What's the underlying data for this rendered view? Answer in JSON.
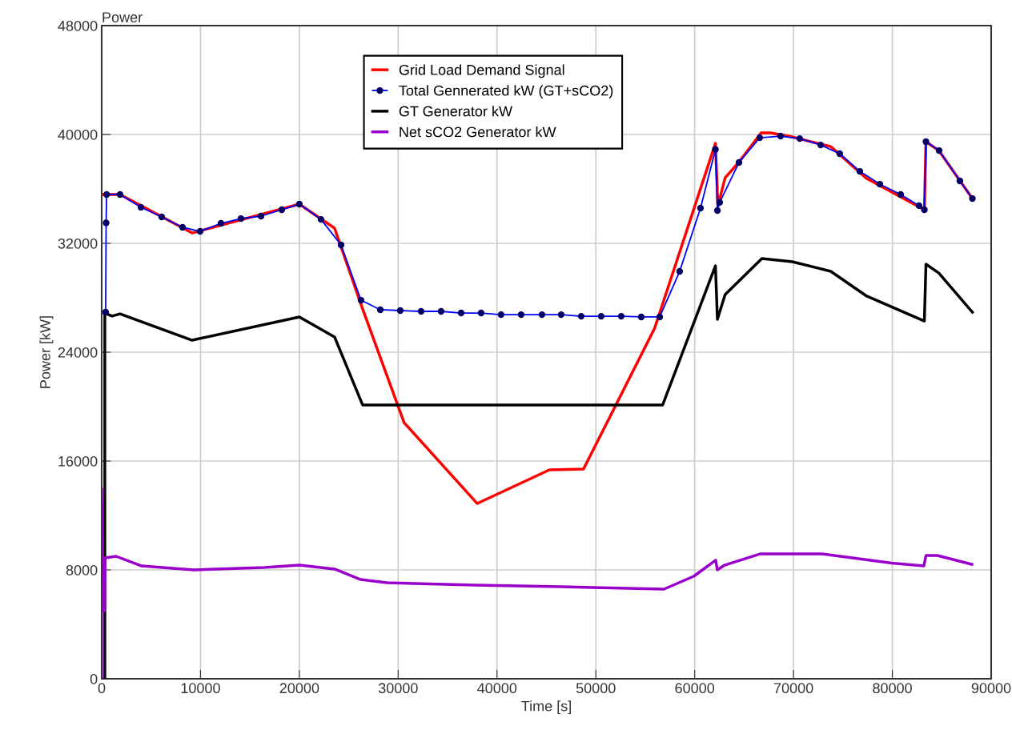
{
  "chart_data": {
    "type": "line",
    "title": "Power",
    "xlabel": "Time [s]",
    "ylabel": "Power [kW]",
    "xlim": [
      0,
      90000
    ],
    "xticks": [
      0,
      10000,
      20000,
      30000,
      40000,
      50000,
      60000,
      70000,
      80000,
      90000
    ],
    "ylim": [
      0,
      48000
    ],
    "yticks": [
      0,
      8000,
      16000,
      24000,
      32000,
      40000,
      48000
    ],
    "grid": true,
    "legend": "top",
    "series": [
      {
        "name": "Grid Load Demand Signal",
        "color": "#ff0000",
        "marker": "none",
        "x": [
          0,
          1860,
          9150,
          20000,
          23560,
          26400,
          30600,
          38000,
          45300,
          48750,
          55950,
          62100,
          62350,
          63080,
          64450,
          66720,
          67690,
          69880,
          73770,
          77410,
          83240,
          83400,
          84700,
          88100
        ],
        "values": [
          35590,
          35590,
          32760,
          34880,
          33120,
          27180,
          18820,
          12880,
          15350,
          15410,
          25760,
          39350,
          34760,
          36820,
          37940,
          40120,
          40120,
          39820,
          39110,
          36760,
          34470,
          39470,
          38820,
          35290
        ]
      },
      {
        "name": "Total Gennerated kW (GT+sCO2)",
        "color": "#0000ff",
        "marker": "circle",
        "x": [
          400,
          450,
          500,
          1860,
          3970,
          6070,
          8180,
          9960,
          12070,
          14090,
          16120,
          18220,
          20000,
          22190,
          24220,
          26240,
          28190,
          30210,
          32320,
          34340,
          36370,
          38390,
          40410,
          42440,
          44550,
          46490,
          48520,
          50540,
          52570,
          54590,
          56460,
          58480,
          60590,
          62100,
          62300,
          62530,
          64480,
          66580,
          68690,
          70630,
          72740,
          74680,
          76710,
          78730,
          80840,
          82700,
          83240,
          83400,
          84730,
          86830,
          88100
        ],
        "values": [
          26940,
          33500,
          35590,
          35590,
          34650,
          33940,
          33180,
          32880,
          33470,
          33820,
          34000,
          34470,
          34880,
          33760,
          31880,
          27820,
          27120,
          27060,
          27000,
          27000,
          26880,
          26880,
          26760,
          26760,
          26760,
          26760,
          26640,
          26640,
          26640,
          26590,
          26590,
          29940,
          34590,
          38900,
          34410,
          35010,
          37940,
          39760,
          39880,
          39700,
          39230,
          38590,
          37290,
          36350,
          35590,
          34770,
          34470,
          39470,
          38820,
          36590,
          35290
        ]
      },
      {
        "name": "GT Generator kW",
        "color": "#000000",
        "marker": "none",
        "x": [
          320,
          320,
          1050,
          1860,
          9150,
          20000,
          23560,
          26400,
          56760,
          62100,
          62300,
          63080,
          66800,
          69880,
          73770,
          77410,
          83240,
          83400,
          84700,
          88100
        ],
        "values": [
          0,
          26880,
          26650,
          26820,
          24880,
          26590,
          25120,
          20120,
          20120,
          30350,
          26410,
          28230,
          30880,
          30650,
          29940,
          28120,
          26290,
          30470,
          29820,
          26940
        ]
      },
      {
        "name": "Net sCO2 Generator kW",
        "color": "#9900cc",
        "marker": "none",
        "x": [
          0,
          0,
          150,
          300,
          350,
          1460,
          4050,
          9320,
          16440,
          20000,
          23570,
          26210,
          28840,
          37830,
          46490,
          49650,
          56900,
          59900,
          62130,
          62290,
          63020,
          66660,
          72900,
          79950,
          83190,
          83400,
          84560,
          88050
        ],
        "values": [
          0,
          14000,
          5000,
          5000,
          8880,
          9000,
          8290,
          8000,
          8180,
          8350,
          8060,
          7290,
          7060,
          6880,
          6760,
          6700,
          6590,
          7530,
          8710,
          8000,
          8350,
          9180,
          9180,
          8500,
          8290,
          9060,
          9060,
          8410
        ]
      }
    ]
  }
}
